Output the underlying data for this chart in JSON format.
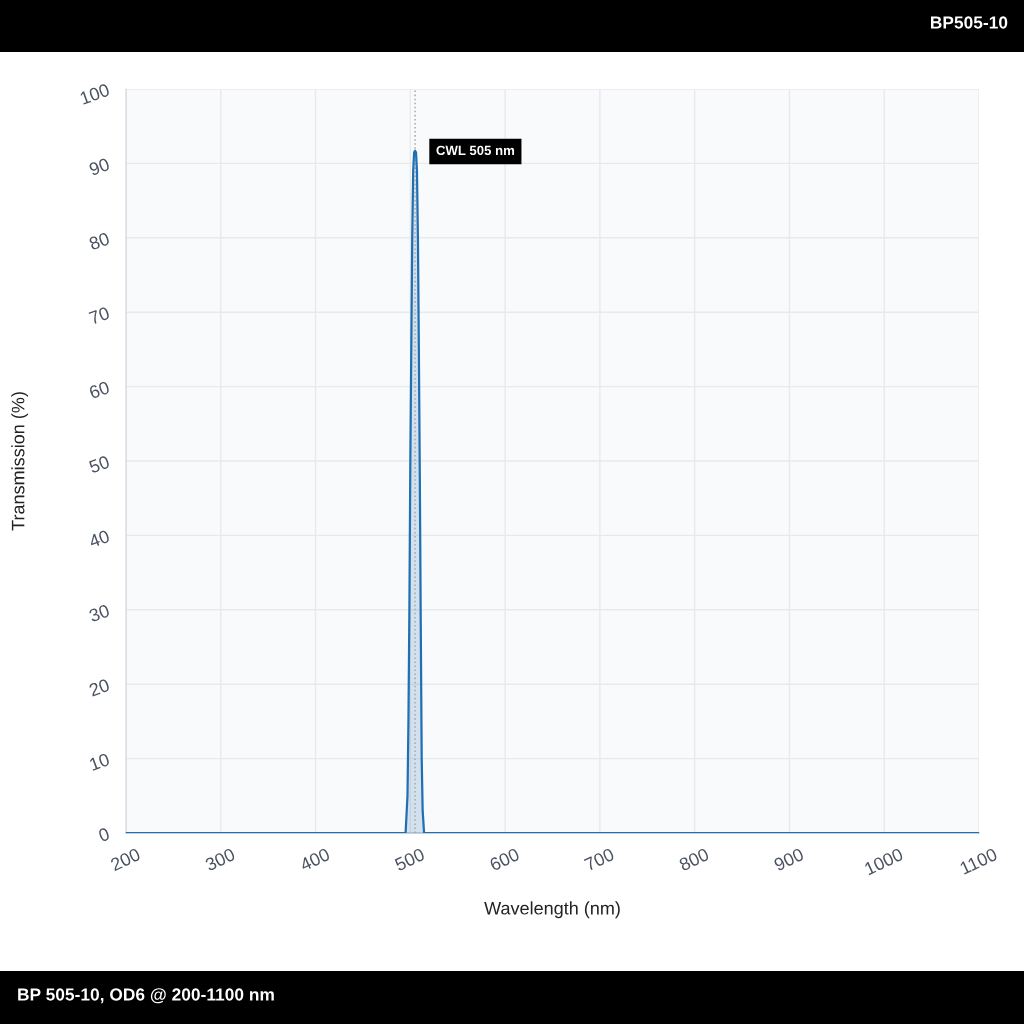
{
  "chart_data": {
    "type": "area",
    "title": "BP505-10",
    "xlabel": "Wavelength (nm)",
    "ylabel": "Transmission (%)",
    "series": [
      {
        "color": "#1f6fb2",
        "x": [
          200,
          495,
          497,
          498,
          499,
          500,
          501,
          502,
          503,
          504,
          505,
          506,
          507,
          508,
          509,
          510,
          511,
          512,
          513,
          514.5,
          1100
        ],
        "values": [
          0,
          0,
          5,
          15,
          30,
          50,
          65,
          80,
          89,
          91.5,
          91.7,
          91.5,
          89,
          80,
          65,
          48,
          28,
          10,
          3,
          0,
          0
        ]
      }
    ],
    "xlim": [
      200,
      1100
    ],
    "xticks": [
      200,
      300,
      400,
      500,
      600,
      700,
      800,
      900,
      1000,
      1100
    ],
    "ylim": [
      0,
      100
    ],
    "yticks": [
      0,
      10,
      20,
      30,
      40,
      50,
      60,
      70,
      80,
      90,
      100
    ],
    "grid": true,
    "ref_lines": [
      {
        "axis": "x",
        "value": 505,
        "label": "CWL 505 nm",
        "color": "#aaaaaa",
        "line_style": "dotted"
      }
    ],
    "annotations": [
      "BP 505-10, OD6 @ 200-1100 nm"
    ]
  }
}
